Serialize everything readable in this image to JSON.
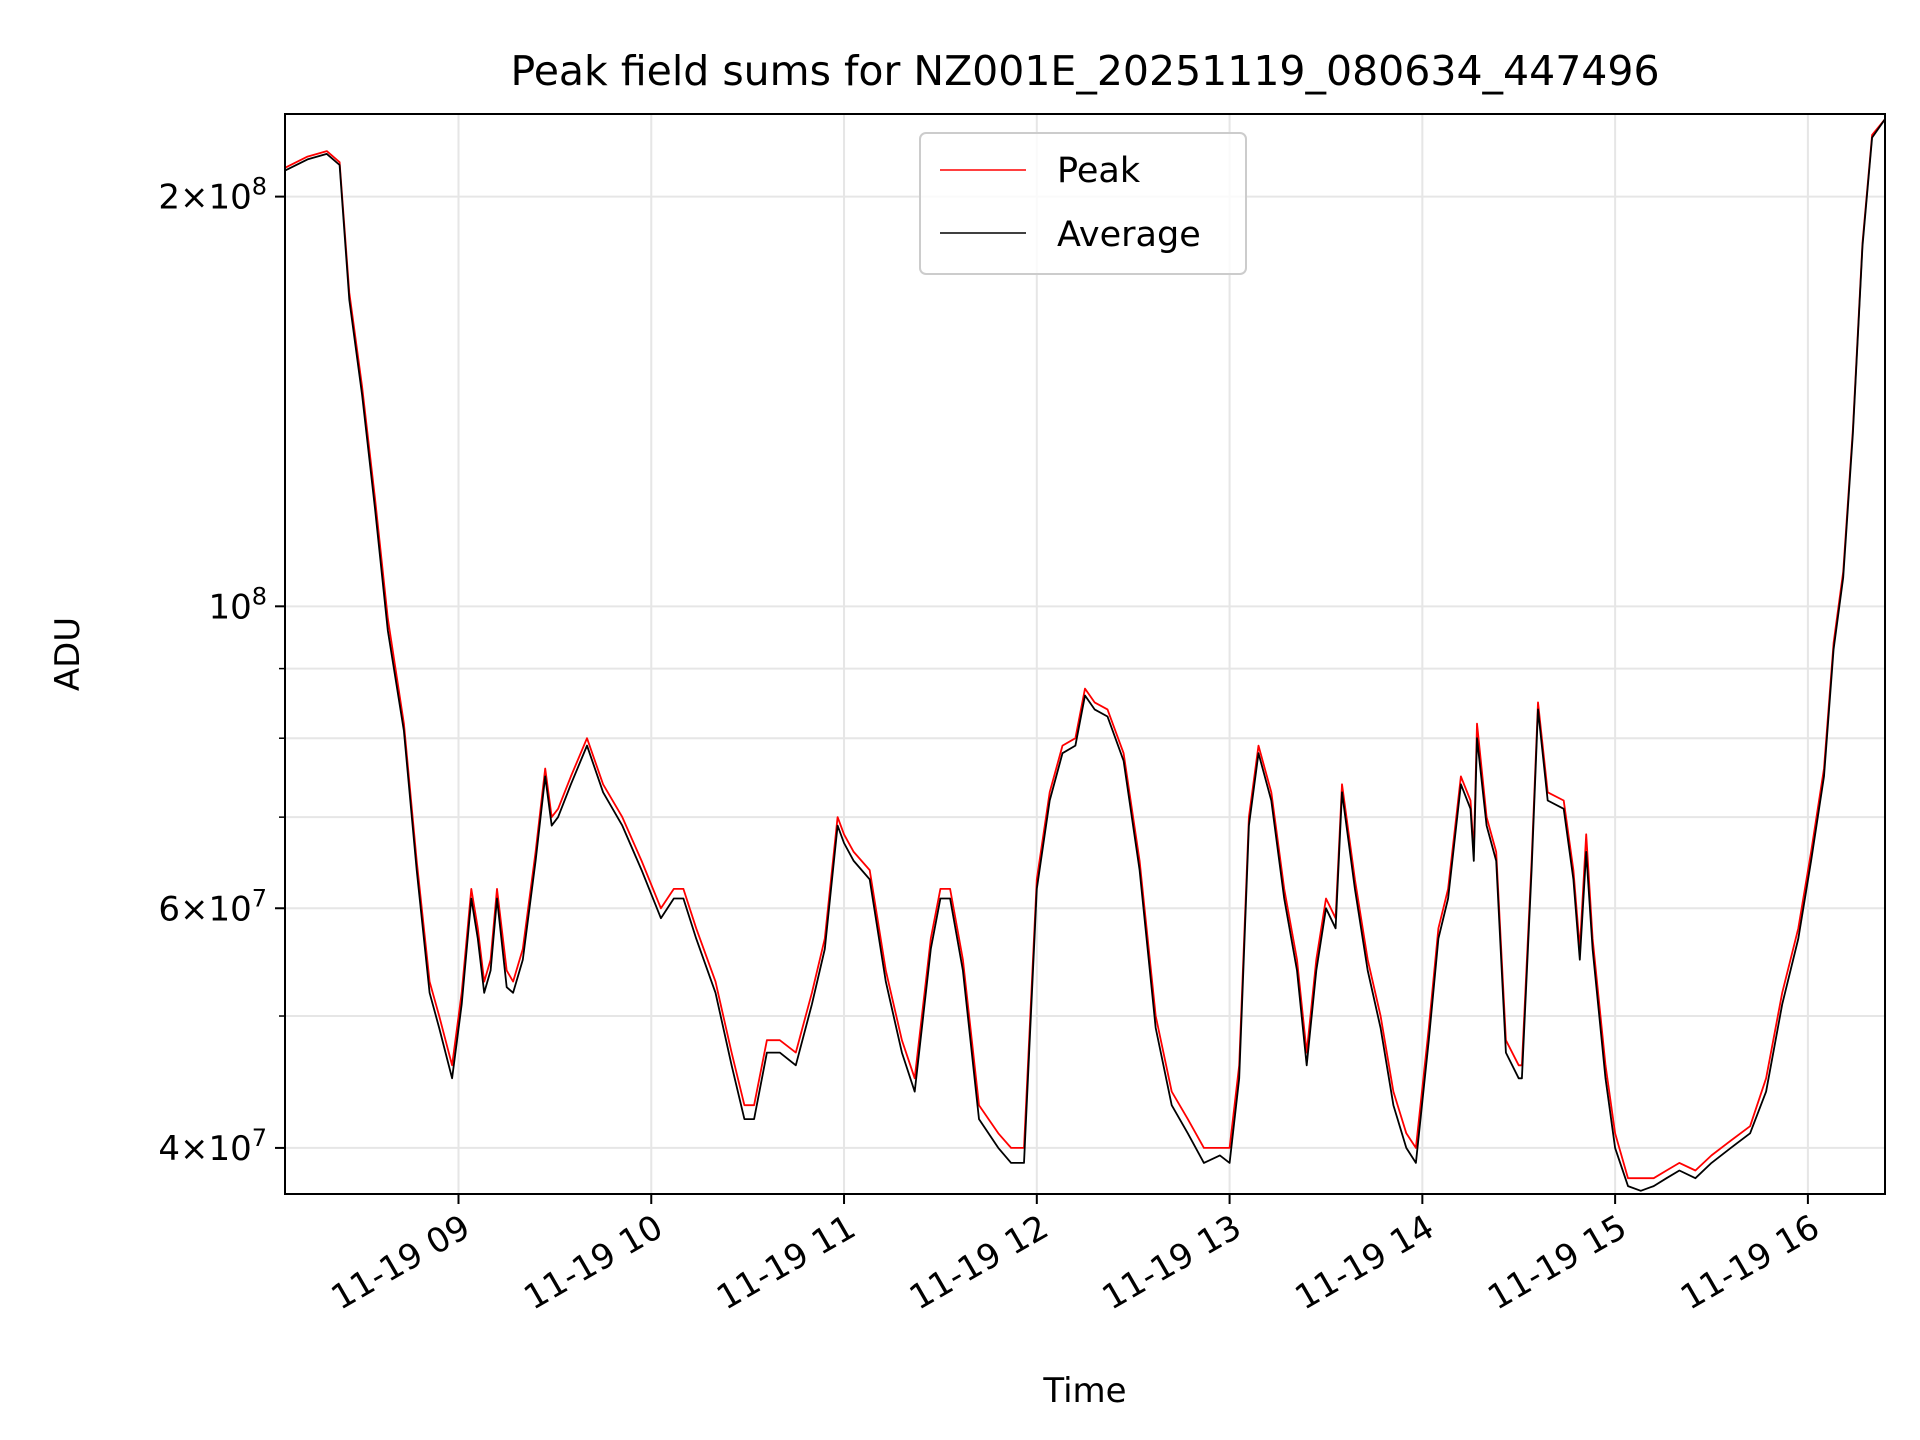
{
  "chart_data": {
    "type": "line",
    "title": "Peak field sums for NZ001E_20251119_080634_447496",
    "xlabel": "Time",
    "ylabel": "ADU",
    "y_scale": "log",
    "xlim": [
      "2025-11-19 08:06",
      "2025-11-19 16:24"
    ],
    "ylim": [
      37000000,
      230000000
    ],
    "x_ticks": [
      {
        "label": "11-19 09",
        "value": "2025-11-19 09:00"
      },
      {
        "label": "11-19 10",
        "value": "2025-11-19 10:00"
      },
      {
        "label": "11-19 11",
        "value": "2025-11-19 11:00"
      },
      {
        "label": "11-19 12",
        "value": "2025-11-19 12:00"
      },
      {
        "label": "11-19 13",
        "value": "2025-11-19 13:00"
      },
      {
        "label": "11-19 14",
        "value": "2025-11-19 14:00"
      },
      {
        "label": "11-19 15",
        "value": "2025-11-19 15:00"
      },
      {
        "label": "11-19 16",
        "value": "2025-11-19 16:00"
      }
    ],
    "y_ticks": [
      {
        "value": 40000000,
        "mantissa": "4",
        "exponent": "7"
      },
      {
        "value": 60000000,
        "mantissa": "6",
        "exponent": "7"
      },
      {
        "value": 100000000,
        "mantissa": "",
        "exponent": "8"
      },
      {
        "value": 200000000,
        "mantissa": "2",
        "exponent": "8"
      }
    ],
    "y_minor_ticks": [
      50000000,
      70000000,
      80000000,
      90000000
    ],
    "grid": true,
    "legend_position": "top-center",
    "series": [
      {
        "name": "Peak",
        "color": "#ff0000",
        "x": [
          "2025-11-19 08:06",
          "2025-11-19 08:13",
          "2025-11-19 08:19",
          "2025-11-19 08:23",
          "2025-11-19 08:26",
          "2025-11-19 08:30",
          "2025-11-19 08:34",
          "2025-11-19 08:38",
          "2025-11-19 08:43",
          "2025-11-19 08:47",
          "2025-11-19 08:51",
          "2025-11-19 08:54",
          "2025-11-19 08:58",
          "2025-11-19 09:01",
          "2025-11-19 09:04",
          "2025-11-19 09:06",
          "2025-11-19 09:08",
          "2025-11-19 09:10",
          "2025-11-19 09:12",
          "2025-11-19 09:15",
          "2025-11-19 09:17",
          "2025-11-19 09:20",
          "2025-11-19 09:24",
          "2025-11-19 09:27",
          "2025-11-19 09:29",
          "2025-11-19 09:31",
          "2025-11-19 09:35",
          "2025-11-19 09:40",
          "2025-11-19 09:45",
          "2025-11-19 09:51",
          "2025-11-19 09:57",
          "2025-11-19 10:03",
          "2025-11-19 10:07",
          "2025-11-19 10:10",
          "2025-11-19 10:14",
          "2025-11-19 10:20",
          "2025-11-19 10:25",
          "2025-11-19 10:29",
          "2025-11-19 10:32",
          "2025-11-19 10:36",
          "2025-11-19 10:40",
          "2025-11-19 10:45",
          "2025-11-19 10:50",
          "2025-11-19 10:54",
          "2025-11-19 10:58",
          "2025-11-19 11:00",
          "2025-11-19 11:03",
          "2025-11-19 11:08",
          "2025-11-19 11:13",
          "2025-11-19 11:18",
          "2025-11-19 11:22",
          "2025-11-19 11:27",
          "2025-11-19 11:30",
          "2025-11-19 11:33",
          "2025-11-19 11:37",
          "2025-11-19 11:42",
          "2025-11-19 11:48",
          "2025-11-19 11:52",
          "2025-11-19 11:56",
          "2025-11-19 12:00",
          "2025-11-19 12:04",
          "2025-11-19 12:08",
          "2025-11-19 12:12",
          "2025-11-19 12:15",
          "2025-11-19 12:18",
          "2025-11-19 12:22",
          "2025-11-19 12:27",
          "2025-11-19 12:32",
          "2025-11-19 12:37",
          "2025-11-19 12:42",
          "2025-11-19 12:47",
          "2025-11-19 12:52",
          "2025-11-19 12:57",
          "2025-11-19 13:00",
          "2025-11-19 13:03",
          "2025-11-19 13:06",
          "2025-11-19 13:09",
          "2025-11-19 13:13",
          "2025-11-19 13:17",
          "2025-11-19 13:21",
          "2025-11-19 13:24",
          "2025-11-19 13:27",
          "2025-11-19 13:30",
          "2025-11-19 13:33",
          "2025-11-19 13:35",
          "2025-11-19 13:39",
          "2025-11-19 13:43",
          "2025-11-19 13:47",
          "2025-11-19 13:51",
          "2025-11-19 13:55",
          "2025-11-19 13:58",
          "2025-11-19 14:02",
          "2025-11-19 14:05",
          "2025-11-19 14:08",
          "2025-11-19 14:12",
          "2025-11-19 14:15",
          "2025-11-19 14:16",
          "2025-11-19 14:17",
          "2025-11-19 14:20",
          "2025-11-19 14:23",
          "2025-11-19 14:26",
          "2025-11-19 14:30",
          "2025-11-19 14:31",
          "2025-11-19 14:34",
          "2025-11-19 14:36",
          "2025-11-19 14:39",
          "2025-11-19 14:44",
          "2025-11-19 14:47",
          "2025-11-19 14:49",
          "2025-11-19 14:51",
          "2025-11-19 14:53",
          "2025-11-19 14:57",
          "2025-11-19 15:00",
          "2025-11-19 15:04",
          "2025-11-19 15:08",
          "2025-11-19 15:12",
          "2025-11-19 15:16",
          "2025-11-19 15:20",
          "2025-11-19 15:25",
          "2025-11-19 15:30",
          "2025-11-19 15:36",
          "2025-11-19 15:42",
          "2025-11-19 15:47",
          "2025-11-19 15:52",
          "2025-11-19 15:57",
          "2025-11-19 16:01",
          "2025-11-19 16:05",
          "2025-11-19 16:08",
          "2025-11-19 16:11",
          "2025-11-19 16:14",
          "2025-11-19 16:17",
          "2025-11-19 16:20",
          "2025-11-19 16:24"
        ],
        "y": [
          210000000,
          214000000,
          216000000,
          212000000,
          170000000,
          145000000,
          120000000,
          98000000,
          82000000,
          65000000,
          53000000,
          50000000,
          46000000,
          52000000,
          62000000,
          58000000,
          53000000,
          55000000,
          62000000,
          54000000,
          53000000,
          56000000,
          66000000,
          76000000,
          70000000,
          71000000,
          75000000,
          80000000,
          74000000,
          70000000,
          65000000,
          60000000,
          62000000,
          62000000,
          58000000,
          53000000,
          47000000,
          43000000,
          43000000,
          48000000,
          48000000,
          47000000,
          52000000,
          57000000,
          70000000,
          68000000,
          66000000,
          64000000,
          54000000,
          48000000,
          45000000,
          57000000,
          62000000,
          62000000,
          55000000,
          43000000,
          41000000,
          40000000,
          40000000,
          63000000,
          73000000,
          79000000,
          80000000,
          87000000,
          85000000,
          84000000,
          78000000,
          65000000,
          50000000,
          44000000,
          42000000,
          40000000,
          40000000,
          40000000,
          46000000,
          70000000,
          79000000,
          73000000,
          62000000,
          55000000,
          47000000,
          55000000,
          61000000,
          59000000,
          74000000,
          63000000,
          55000000,
          50000000,
          44000000,
          41000000,
          40000000,
          49000000,
          58000000,
          62000000,
          75000000,
          72000000,
          66000000,
          82000000,
          70000000,
          66000000,
          48000000,
          46000000,
          46000000,
          65000000,
          85000000,
          73000000,
          72000000,
          64000000,
          56000000,
          68000000,
          57000000,
          46000000,
          41000000,
          38000000,
          38000000,
          38000000,
          38500000,
          39000000,
          38500000,
          39500000,
          40500000,
          41500000,
          45000000,
          52000000,
          58000000,
          66000000,
          76000000,
          94000000,
          106000000,
          135000000,
          185000000,
          222000000,
          228000000
        ]
      },
      {
        "name": "Average",
        "color": "#000000",
        "x": [
          "2025-11-19 08:06",
          "2025-11-19 08:13",
          "2025-11-19 08:19",
          "2025-11-19 08:23",
          "2025-11-19 08:26",
          "2025-11-19 08:30",
          "2025-11-19 08:34",
          "2025-11-19 08:38",
          "2025-11-19 08:43",
          "2025-11-19 08:47",
          "2025-11-19 08:51",
          "2025-11-19 08:54",
          "2025-11-19 08:58",
          "2025-11-19 09:01",
          "2025-11-19 09:04",
          "2025-11-19 09:06",
          "2025-11-19 09:08",
          "2025-11-19 09:10",
          "2025-11-19 09:12",
          "2025-11-19 09:15",
          "2025-11-19 09:17",
          "2025-11-19 09:20",
          "2025-11-19 09:24",
          "2025-11-19 09:27",
          "2025-11-19 09:29",
          "2025-11-19 09:31",
          "2025-11-19 09:35",
          "2025-11-19 09:40",
          "2025-11-19 09:45",
          "2025-11-19 09:51",
          "2025-11-19 09:57",
          "2025-11-19 10:03",
          "2025-11-19 10:07",
          "2025-11-19 10:10",
          "2025-11-19 10:14",
          "2025-11-19 10:20",
          "2025-11-19 10:25",
          "2025-11-19 10:29",
          "2025-11-19 10:32",
          "2025-11-19 10:36",
          "2025-11-19 10:40",
          "2025-11-19 10:45",
          "2025-11-19 10:50",
          "2025-11-19 10:54",
          "2025-11-19 10:58",
          "2025-11-19 11:00",
          "2025-11-19 11:03",
          "2025-11-19 11:08",
          "2025-11-19 11:13",
          "2025-11-19 11:18",
          "2025-11-19 11:22",
          "2025-11-19 11:27",
          "2025-11-19 11:30",
          "2025-11-19 11:33",
          "2025-11-19 11:37",
          "2025-11-19 11:42",
          "2025-11-19 11:48",
          "2025-11-19 11:52",
          "2025-11-19 11:56",
          "2025-11-19 12:00",
          "2025-11-19 12:04",
          "2025-11-19 12:08",
          "2025-11-19 12:12",
          "2025-11-19 12:15",
          "2025-11-19 12:18",
          "2025-11-19 12:22",
          "2025-11-19 12:27",
          "2025-11-19 12:32",
          "2025-11-19 12:37",
          "2025-11-19 12:42",
          "2025-11-19 12:47",
          "2025-11-19 12:52",
          "2025-11-19 12:57",
          "2025-11-19 13:00",
          "2025-11-19 13:03",
          "2025-11-19 13:06",
          "2025-11-19 13:09",
          "2025-11-19 13:13",
          "2025-11-19 13:17",
          "2025-11-19 13:21",
          "2025-11-19 13:24",
          "2025-11-19 13:27",
          "2025-11-19 13:30",
          "2025-11-19 13:33",
          "2025-11-19 13:35",
          "2025-11-19 13:39",
          "2025-11-19 13:43",
          "2025-11-19 13:47",
          "2025-11-19 13:51",
          "2025-11-19 13:55",
          "2025-11-19 13:58",
          "2025-11-19 14:02",
          "2025-11-19 14:05",
          "2025-11-19 14:08",
          "2025-11-19 14:12",
          "2025-11-19 14:15",
          "2025-11-19 14:16",
          "2025-11-19 14:17",
          "2025-11-19 14:20",
          "2025-11-19 14:23",
          "2025-11-19 14:26",
          "2025-11-19 14:30",
          "2025-11-19 14:31",
          "2025-11-19 14:34",
          "2025-11-19 14:36",
          "2025-11-19 14:39",
          "2025-11-19 14:44",
          "2025-11-19 14:47",
          "2025-11-19 14:49",
          "2025-11-19 14:51",
          "2025-11-19 14:53",
          "2025-11-19 14:57",
          "2025-11-19 15:00",
          "2025-11-19 15:04",
          "2025-11-19 15:08",
          "2025-11-19 15:12",
          "2025-11-19 15:16",
          "2025-11-19 15:20",
          "2025-11-19 15:25",
          "2025-11-19 15:30",
          "2025-11-19 15:36",
          "2025-11-19 15:42",
          "2025-11-19 15:47",
          "2025-11-19 15:52",
          "2025-11-19 15:57",
          "2025-11-19 16:01",
          "2025-11-19 16:05",
          "2025-11-19 16:08",
          "2025-11-19 16:11",
          "2025-11-19 16:14",
          "2025-11-19 16:17",
          "2025-11-19 16:20",
          "2025-11-19 16:24"
        ],
        "y": [
          209000000,
          213000000,
          215000000,
          211000000,
          168000000,
          143000000,
          118000000,
          96000000,
          81000000,
          64000000,
          52000000,
          49000000,
          45000000,
          51000000,
          61000000,
          57000000,
          52000000,
          54000000,
          61000000,
          52500000,
          52000000,
          55000000,
          65000000,
          75000000,
          69000000,
          70000000,
          74000000,
          79000000,
          73000000,
          69000000,
          64000000,
          59000000,
          61000000,
          61000000,
          57000000,
          52000000,
          46000000,
          42000000,
          42000000,
          47000000,
          47000000,
          46000000,
          51000000,
          56000000,
          69000000,
          67000000,
          65000000,
          63000000,
          53000000,
          47000000,
          44000000,
          56000000,
          61000000,
          61000000,
          54000000,
          42000000,
          40000000,
          39000000,
          39000000,
          62000000,
          72000000,
          78000000,
          79000000,
          86000000,
          84000000,
          83000000,
          77000000,
          64000000,
          49000000,
          43000000,
          41000000,
          39000000,
          39500000,
          39000000,
          45000000,
          69000000,
          78000000,
          72000000,
          61000000,
          54000000,
          46000000,
          54000000,
          60000000,
          58000000,
          73000000,
          62000000,
          54000000,
          49000000,
          43000000,
          40000000,
          39000000,
          48000000,
          57000000,
          61000000,
          74000000,
          71000000,
          65000000,
          80000000,
          69000000,
          65000000,
          47000000,
          45000000,
          45000000,
          64000000,
          84000000,
          72000000,
          71000000,
          63000000,
          55000000,
          66000000,
          56000000,
          45000000,
          40000000,
          37500000,
          37200000,
          37500000,
          38000000,
          38500000,
          38000000,
          39000000,
          40000000,
          41000000,
          44000000,
          51000000,
          57000000,
          65000000,
          75000000,
          93000000,
          105000000,
          134000000,
          184000000,
          221000000,
          228000000
        ]
      }
    ]
  }
}
